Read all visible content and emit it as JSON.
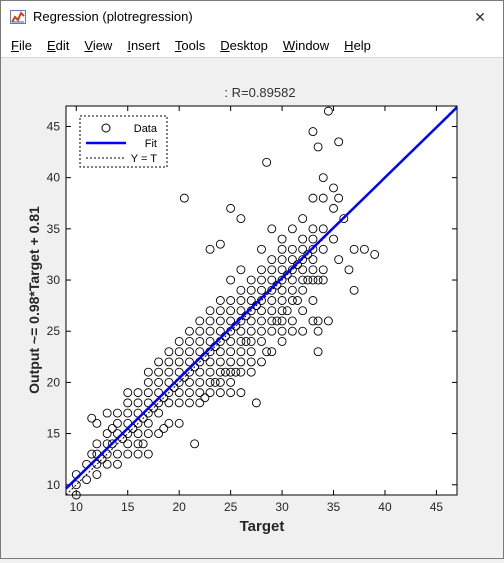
{
  "window": {
    "title": "Regression (plotregression)",
    "close_glyph": "✕",
    "app_icon": "matlab-figure-icon"
  },
  "menu": [
    "File",
    "Edit",
    "View",
    "Insert",
    "Tools",
    "Desktop",
    "Window",
    "Help"
  ],
  "chart_data": {
    "type": "scatter",
    "title": ": R=0.89582",
    "xlabel": "Target",
    "ylabel": "Output ~= 0.98*Target + 0.81",
    "xlim": [
      9,
      47
    ],
    "ylim": [
      9,
      47
    ],
    "xticks": [
      10,
      15,
      20,
      25,
      30,
      35,
      40,
      45
    ],
    "yticks": [
      10,
      15,
      20,
      25,
      30,
      35,
      40,
      45
    ],
    "legend": {
      "placement": "top-left",
      "entries": [
        "Data",
        "Fit",
        "Y = T"
      ]
    },
    "fit": {
      "slope": 0.98,
      "intercept": 0.81,
      "color": "#0000ff"
    },
    "identity_line": {
      "style": "dotted",
      "color": "#000000"
    },
    "marker": {
      "shape": "open-circle",
      "color": "#000000"
    },
    "series": [
      {
        "name": "Data",
        "points": [
          [
            10,
            9
          ],
          [
            10,
            10
          ],
          [
            10,
            11
          ],
          [
            11,
            10.5
          ],
          [
            11,
            12
          ],
          [
            11.5,
            13
          ],
          [
            11.5,
            16.5
          ],
          [
            12,
            11
          ],
          [
            12,
            12
          ],
          [
            12,
            13
          ],
          [
            12,
            14
          ],
          [
            12,
            16
          ],
          [
            12.5,
            12.5
          ],
          [
            13,
            12
          ],
          [
            13,
            13
          ],
          [
            13,
            14
          ],
          [
            13,
            15
          ],
          [
            13,
            17
          ],
          [
            13.5,
            14
          ],
          [
            13.5,
            15.5
          ],
          [
            14,
            12
          ],
          [
            14,
            13
          ],
          [
            14,
            15
          ],
          [
            14,
            16
          ],
          [
            14,
            17
          ],
          [
            14.5,
            14.5
          ],
          [
            15,
            13
          ],
          [
            15,
            14
          ],
          [
            15,
            15
          ],
          [
            15,
            16
          ],
          [
            15,
            17
          ],
          [
            15,
            18
          ],
          [
            15,
            19
          ],
          [
            15.5,
            15.5
          ],
          [
            16,
            13
          ],
          [
            16,
            14
          ],
          [
            16,
            15
          ],
          [
            16,
            16
          ],
          [
            16,
            17
          ],
          [
            16,
            18
          ],
          [
            16,
            19
          ],
          [
            16.5,
            14
          ],
          [
            16.5,
            16.5
          ],
          [
            17,
            13
          ],
          [
            17,
            15
          ],
          [
            17,
            16
          ],
          [
            17,
            17
          ],
          [
            17,
            18
          ],
          [
            17,
            19
          ],
          [
            17,
            20
          ],
          [
            17,
            21
          ],
          [
            17.5,
            17.5
          ],
          [
            18,
            15
          ],
          [
            18,
            17
          ],
          [
            18,
            18
          ],
          [
            18,
            19
          ],
          [
            18,
            20
          ],
          [
            18,
            21
          ],
          [
            18,
            22
          ],
          [
            18.5,
            15.5
          ],
          [
            18.5,
            18.5
          ],
          [
            19,
            16
          ],
          [
            19,
            18
          ],
          [
            19,
            19
          ],
          [
            19,
            20
          ],
          [
            19,
            21
          ],
          [
            19,
            22
          ],
          [
            19,
            23
          ],
          [
            19.5,
            19.5
          ],
          [
            20,
            16
          ],
          [
            20,
            18
          ],
          [
            20,
            19
          ],
          [
            20,
            20
          ],
          [
            20,
            21
          ],
          [
            20,
            22
          ],
          [
            20,
            23
          ],
          [
            20,
            24
          ],
          [
            20.5,
            38
          ],
          [
            20.5,
            20.5
          ],
          [
            21,
            18
          ],
          [
            21,
            19
          ],
          [
            21,
            20
          ],
          [
            21,
            21
          ],
          [
            21,
            22
          ],
          [
            21,
            23
          ],
          [
            21,
            24
          ],
          [
            21,
            25
          ],
          [
            21.5,
            14
          ],
          [
            21.5,
            21.5
          ],
          [
            22,
            18
          ],
          [
            22,
            19
          ],
          [
            22,
            20
          ],
          [
            22,
            21
          ],
          [
            22,
            22
          ],
          [
            22,
            23
          ],
          [
            22,
            24
          ],
          [
            22,
            25
          ],
          [
            22,
            26
          ],
          [
            22.5,
            18.5
          ],
          [
            22.5,
            22.5
          ],
          [
            23,
            19
          ],
          [
            23,
            20
          ],
          [
            23,
            21
          ],
          [
            23,
            22
          ],
          [
            23,
            23
          ],
          [
            23,
            24
          ],
          [
            23,
            25
          ],
          [
            23,
            26
          ],
          [
            23,
            27
          ],
          [
            23,
            33
          ],
          [
            23.5,
            20
          ],
          [
            23.5,
            23.5
          ],
          [
            24,
            19
          ],
          [
            24,
            20
          ],
          [
            24,
            21
          ],
          [
            24,
            22
          ],
          [
            24,
            23
          ],
          [
            24,
            24
          ],
          [
            24,
            25
          ],
          [
            24,
            26
          ],
          [
            24,
            27
          ],
          [
            24,
            28
          ],
          [
            24,
            33.5
          ],
          [
            24.5,
            21
          ],
          [
            24.5,
            24.5
          ],
          [
            25,
            19
          ],
          [
            25,
            20
          ],
          [
            25,
            21
          ],
          [
            25,
            22
          ],
          [
            25,
            23
          ],
          [
            25,
            24
          ],
          [
            25,
            25
          ],
          [
            25,
            26
          ],
          [
            25,
            27
          ],
          [
            25,
            28
          ],
          [
            25,
            30
          ],
          [
            25,
            37
          ],
          [
            25.5,
            21
          ],
          [
            25.5,
            25.5
          ],
          [
            26,
            19
          ],
          [
            26,
            21
          ],
          [
            26,
            22
          ],
          [
            26,
            23
          ],
          [
            26,
            24
          ],
          [
            26,
            25
          ],
          [
            26,
            26
          ],
          [
            26,
            27
          ],
          [
            26,
            28
          ],
          [
            26,
            29
          ],
          [
            26,
            31
          ],
          [
            26,
            36
          ],
          [
            26.5,
            24
          ],
          [
            26.5,
            26.5
          ],
          [
            27,
            21
          ],
          [
            27,
            22
          ],
          [
            27,
            23
          ],
          [
            27,
            24
          ],
          [
            27,
            25
          ],
          [
            27,
            26
          ],
          [
            27,
            27
          ],
          [
            27,
            28
          ],
          [
            27,
            29
          ],
          [
            27,
            30
          ],
          [
            27.5,
            18
          ],
          [
            27.5,
            27.5
          ],
          [
            28,
            22
          ],
          [
            28,
            24
          ],
          [
            28,
            25
          ],
          [
            28,
            26
          ],
          [
            28,
            27
          ],
          [
            28,
            28
          ],
          [
            28,
            29
          ],
          [
            28,
            30
          ],
          [
            28,
            31
          ],
          [
            28,
            33
          ],
          [
            28.5,
            23
          ],
          [
            28.5,
            41.5
          ],
          [
            29,
            23
          ],
          [
            29,
            25
          ],
          [
            29,
            26
          ],
          [
            29,
            27
          ],
          [
            29,
            28
          ],
          [
            29,
            29
          ],
          [
            29,
            30
          ],
          [
            29,
            31
          ],
          [
            29,
            32
          ],
          [
            29,
            35
          ],
          [
            29.5,
            26
          ],
          [
            29.5,
            29.5
          ],
          [
            30,
            24
          ],
          [
            30,
            25
          ],
          [
            30,
            26
          ],
          [
            30,
            27
          ],
          [
            30,
            28
          ],
          [
            30,
            29
          ],
          [
            30,
            30
          ],
          [
            30,
            31
          ],
          [
            30,
            32
          ],
          [
            30,
            33
          ],
          [
            30,
            34
          ],
          [
            30.5,
            27
          ],
          [
            30.5,
            30.5
          ],
          [
            31,
            25
          ],
          [
            31,
            26
          ],
          [
            31,
            28
          ],
          [
            31,
            29
          ],
          [
            31,
            30
          ],
          [
            31,
            31
          ],
          [
            31,
            32
          ],
          [
            31,
            33
          ],
          [
            31,
            35
          ],
          [
            31.5,
            28
          ],
          [
            31.5,
            31.5
          ],
          [
            32,
            25
          ],
          [
            32,
            27
          ],
          [
            32,
            29
          ],
          [
            32,
            30
          ],
          [
            32,
            31
          ],
          [
            32,
            32
          ],
          [
            32,
            33
          ],
          [
            32,
            34
          ],
          [
            32,
            36
          ],
          [
            32.5,
            30
          ],
          [
            32.5,
            32.5
          ],
          [
            33,
            26
          ],
          [
            33,
            28
          ],
          [
            33,
            30
          ],
          [
            33,
            31
          ],
          [
            33,
            32
          ],
          [
            33,
            33
          ],
          [
            33,
            34
          ],
          [
            33,
            35
          ],
          [
            33,
            38
          ],
          [
            33,
            44.5
          ],
          [
            33.5,
            23
          ],
          [
            33.5,
            25
          ],
          [
            33.5,
            26
          ],
          [
            33.5,
            30
          ],
          [
            33.5,
            43
          ],
          [
            34,
            30
          ],
          [
            34,
            31
          ],
          [
            34,
            33
          ],
          [
            34,
            35
          ],
          [
            34,
            38
          ],
          [
            34,
            40
          ],
          [
            34.5,
            46.5
          ],
          [
            34.5,
            26
          ],
          [
            35,
            34
          ],
          [
            35,
            37
          ],
          [
            35,
            39
          ],
          [
            35.5,
            32
          ],
          [
            35.5,
            38
          ],
          [
            35.5,
            43.5
          ],
          [
            36,
            36
          ],
          [
            36.5,
            31
          ],
          [
            37,
            29
          ],
          [
            37,
            33
          ],
          [
            38,
            33
          ],
          [
            39,
            32.5
          ]
        ]
      }
    ]
  }
}
